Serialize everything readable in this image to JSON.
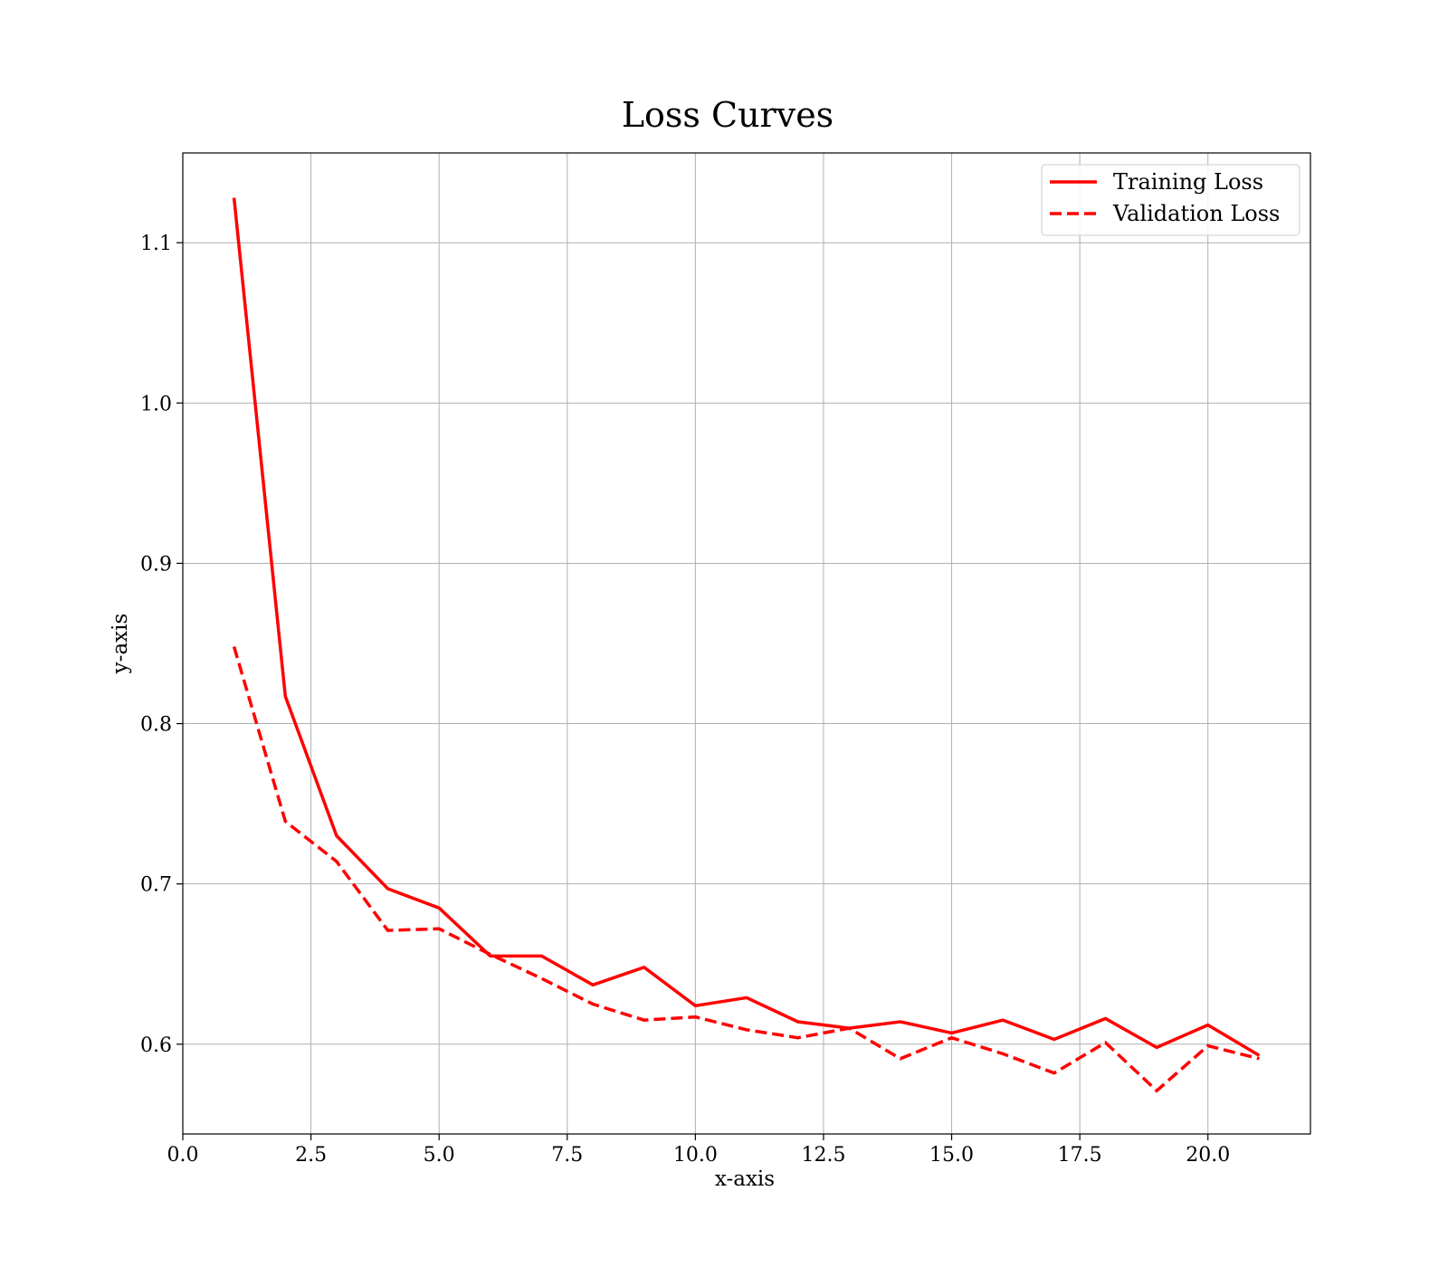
{
  "chart_data": {
    "type": "line",
    "title": "Loss Curves",
    "xlabel": "x-axis",
    "ylabel": "y-axis",
    "xlim": [
      0.0,
      22.0
    ],
    "ylim": [
      0.544,
      1.156
    ],
    "xticks": [
      0.0,
      2.5,
      5.0,
      7.5,
      10.0,
      12.5,
      15.0,
      17.5,
      20.0
    ],
    "xtick_labels": [
      "0.0",
      "2.5",
      "5.0",
      "7.5",
      "10.0",
      "12.5",
      "15.0",
      "17.5",
      "20.0"
    ],
    "yticks": [
      0.6,
      0.7,
      0.8,
      0.9,
      1.0,
      1.1
    ],
    "ytick_labels": [
      "0.6",
      "0.7",
      "0.8",
      "0.9",
      "1.0",
      "1.1"
    ],
    "grid": true,
    "legend_position": "top-right",
    "x": [
      1,
      2,
      3,
      4,
      5,
      6,
      7,
      8,
      9,
      10,
      11,
      12,
      13,
      14,
      15,
      16,
      17,
      18,
      19,
      20,
      21
    ],
    "series": [
      {
        "name": "Training Loss",
        "color": "#ff0000",
        "style": "solid",
        "values": [
          1.128,
          0.817,
          0.73,
          0.697,
          0.685,
          0.655,
          0.655,
          0.637,
          0.648,
          0.624,
          0.629,
          0.614,
          0.61,
          0.614,
          0.607,
          0.615,
          0.603,
          0.616,
          0.598,
          0.612,
          0.593
        ]
      },
      {
        "name": "Validation Loss",
        "color": "#ff0000",
        "style": "dashed",
        "values": [
          0.848,
          0.739,
          0.714,
          0.671,
          0.672,
          0.656,
          0.641,
          0.625,
          0.615,
          0.617,
          0.609,
          0.604,
          0.61,
          0.591,
          0.604,
          0.594,
          0.582,
          0.601,
          0.571,
          0.599,
          0.591
        ]
      }
    ]
  }
}
